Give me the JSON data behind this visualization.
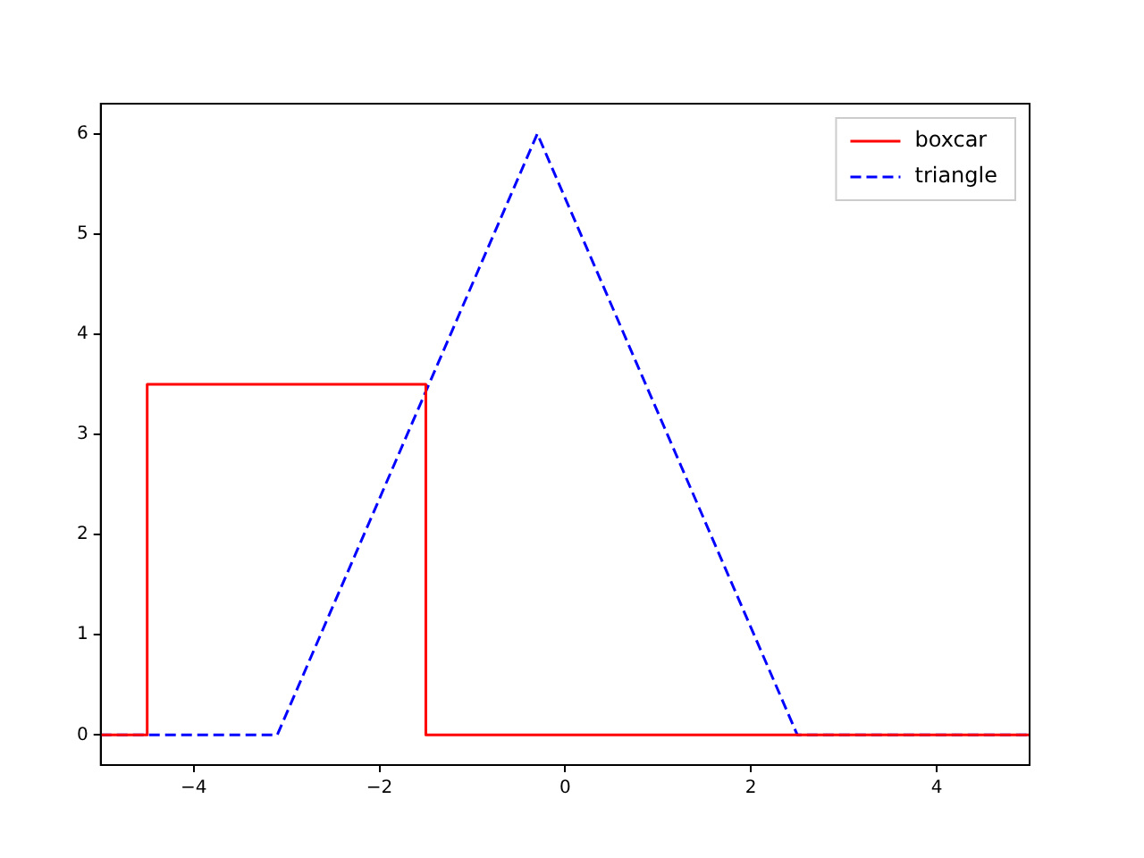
{
  "chart_data": {
    "type": "line",
    "legend": "top right",
    "grid": false,
    "marker": "none",
    "xlim": [
      -5,
      5
    ],
    "xticks": [
      -4,
      -2,
      0,
      2,
      4
    ],
    "ylim": [
      -0.3,
      6.3
    ],
    "yticks": [
      0,
      1,
      2,
      3,
      4,
      5,
      6
    ],
    "series": [
      {
        "name": "boxcar",
        "color": "#ff0000",
        "line_style": "solid",
        "x": [
          -5,
          -4.5,
          -4.5,
          -1.5,
          -1.5,
          5
        ],
        "values": [
          0,
          0,
          3.5,
          3.5,
          0,
          0
        ]
      },
      {
        "name": "triangle",
        "color": "#0000ff",
        "line_style": "dashed",
        "x": [
          -5,
          -3.1,
          -0.3,
          2.5,
          5
        ],
        "values": [
          0,
          0,
          6,
          0,
          0
        ]
      }
    ]
  }
}
